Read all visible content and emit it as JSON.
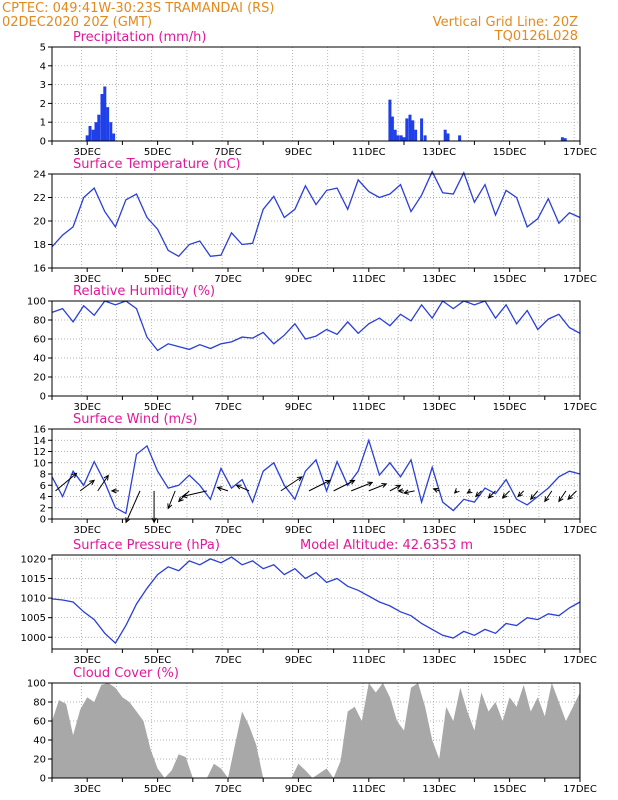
{
  "header": {
    "left_line1": "CPTEC:   049:41W-30:23S   TRAMANDAI (RS)",
    "left_line2": "02DEC2020 20Z (GMT)",
    "right_line1": "Vertical Grid Line: 20Z",
    "right_line2": "TQ0126L028"
  },
  "colors": {
    "header_text": "#e38a1e",
    "panel_title": "#e0189a",
    "series_line": "#2a3fd6",
    "precip_bar": "#1f3fe8",
    "cloud_fill": "#a8a8a8",
    "wind_arrow": "#000000",
    "grid": "#9a9a9a"
  },
  "chart_data": [
    {
      "id": "precip",
      "type": "bar",
      "title": "Precipitation (mm/h)",
      "xlim": [
        2.0,
        17.0
      ],
      "ylim": [
        0,
        5
      ],
      "yticks": [
        0,
        1,
        2,
        3,
        4,
        5
      ],
      "xticks": [
        3,
        5,
        7,
        9,
        11,
        13,
        15,
        17
      ],
      "xticklabels": [
        "3DEC",
        "5DEC",
        "7DEC",
        "9DEC",
        "11DEC",
        "13DEC",
        "15DEC",
        "17DEC"
      ],
      "x": [
        3.0,
        3.08,
        3.17,
        3.25,
        3.33,
        3.42,
        3.5,
        3.58,
        3.67,
        3.75,
        11.6,
        11.67,
        11.75,
        11.83,
        11.92,
        12.0,
        12.08,
        12.17,
        12.25,
        12.33,
        12.5,
        12.6,
        13.17,
        13.25,
        13.58,
        16.5,
        16.58
      ],
      "values": [
        0.3,
        0.8,
        0.6,
        1.0,
        1.4,
        2.5,
        2.9,
        1.8,
        1.0,
        0.4,
        2.2,
        1.3,
        0.6,
        0.3,
        0.3,
        0.2,
        1.2,
        1.4,
        1.1,
        0.6,
        1.2,
        0.3,
        0.6,
        0.4,
        0.3,
        0.2,
        0.15
      ]
    },
    {
      "id": "temp",
      "type": "line",
      "title": "Surface Temperature (nC)",
      "xlim": [
        2.0,
        17.0
      ],
      "ylim": [
        16,
        24
      ],
      "yticks": [
        16,
        18,
        20,
        22,
        24
      ],
      "xticks": [
        3,
        5,
        7,
        9,
        11,
        13,
        15,
        17
      ],
      "xticklabels": [
        "3DEC",
        "5DEC",
        "7DEC",
        "9DEC",
        "11DEC",
        "13DEC",
        "15DEC",
        "17DEC"
      ],
      "x": [
        2.0,
        2.3,
        2.6,
        2.9,
        3.2,
        3.5,
        3.8,
        4.1,
        4.4,
        4.7,
        5.0,
        5.3,
        5.6,
        5.9,
        6.2,
        6.5,
        6.8,
        7.1,
        7.4,
        7.7,
        8.0,
        8.3,
        8.6,
        8.9,
        9.2,
        9.5,
        9.8,
        10.1,
        10.4,
        10.7,
        11.0,
        11.3,
        11.6,
        11.9,
        12.2,
        12.5,
        12.8,
        13.1,
        13.4,
        13.7,
        14.0,
        14.3,
        14.6,
        14.9,
        15.2,
        15.5,
        15.8,
        16.1,
        16.4,
        16.7,
        17.0
      ],
      "y": [
        17.8,
        18.8,
        19.5,
        22.0,
        22.8,
        20.8,
        19.5,
        21.8,
        22.3,
        20.3,
        19.3,
        17.5,
        17.0,
        18.0,
        18.3,
        17.0,
        17.1,
        19.0,
        18.0,
        18.1,
        21.0,
        22.1,
        20.3,
        21.0,
        23.0,
        21.4,
        22.6,
        22.8,
        21.0,
        23.5,
        22.5,
        22.0,
        22.3,
        23.1,
        20.8,
        22.2,
        24.2,
        22.4,
        22.3,
        24.1,
        21.6,
        23.1,
        20.5,
        22.6,
        22.0,
        19.5,
        20.2,
        21.9,
        19.8,
        20.7,
        20.3
      ]
    },
    {
      "id": "rh",
      "type": "line",
      "title": "Relative Humidity (%)",
      "xlim": [
        2.0,
        17.0
      ],
      "ylim": [
        0,
        100
      ],
      "yticks": [
        0,
        20,
        40,
        60,
        80,
        100
      ],
      "xticks": [
        3,
        5,
        7,
        9,
        11,
        13,
        15,
        17
      ],
      "xticklabels": [
        "3DEC",
        "5DEC",
        "7DEC",
        "9DEC",
        "11DEC",
        "13DEC",
        "15DEC",
        "17DEC"
      ],
      "x": [
        2.0,
        2.3,
        2.6,
        2.9,
        3.2,
        3.5,
        3.8,
        4.1,
        4.4,
        4.7,
        5.0,
        5.3,
        5.6,
        5.9,
        6.2,
        6.5,
        6.8,
        7.1,
        7.4,
        7.7,
        8.0,
        8.3,
        8.6,
        8.9,
        9.2,
        9.5,
        9.8,
        10.1,
        10.4,
        10.7,
        11.0,
        11.3,
        11.6,
        11.9,
        12.2,
        12.5,
        12.8,
        13.1,
        13.4,
        13.7,
        14.0,
        14.3,
        14.6,
        14.9,
        15.2,
        15.5,
        15.8,
        16.1,
        16.4,
        16.7,
        17.0
      ],
      "y": [
        88,
        92,
        78,
        95,
        85,
        100,
        96,
        100,
        92,
        62,
        48,
        55,
        52,
        49,
        54,
        50,
        55,
        57,
        62,
        61,
        67,
        55,
        64,
        76,
        60,
        63,
        70,
        65,
        78,
        66,
        76,
        82,
        74,
        86,
        79,
        96,
        82,
        100,
        92,
        100,
        96,
        100,
        82,
        96,
        76,
        90,
        70,
        81,
        86,
        72,
        66
      ]
    },
    {
      "id": "wind",
      "type": "line",
      "title": "Surface Wind (m/s)",
      "xlim": [
        2.0,
        17.0
      ],
      "ylim": [
        0,
        16
      ],
      "yticks": [
        0,
        2,
        4,
        6,
        8,
        10,
        12,
        14,
        16
      ],
      "xticks": [
        3,
        5,
        7,
        9,
        11,
        13,
        15,
        17
      ],
      "xticklabels": [
        "3DEC",
        "5DEC",
        "7DEC",
        "9DEC",
        "11DEC",
        "13DEC",
        "15DEC",
        "17DEC"
      ],
      "x": [
        2.0,
        2.3,
        2.6,
        2.9,
        3.2,
        3.5,
        3.8,
        4.1,
        4.4,
        4.7,
        5.0,
        5.3,
        5.6,
        5.9,
        6.2,
        6.5,
        6.8,
        7.1,
        7.4,
        7.7,
        8.0,
        8.3,
        8.6,
        8.9,
        9.2,
        9.5,
        9.8,
        10.1,
        10.4,
        10.7,
        11.0,
        11.3,
        11.6,
        11.9,
        12.2,
        12.5,
        12.8,
        13.1,
        13.4,
        13.7,
        14.0,
        14.3,
        14.6,
        14.9,
        15.2,
        15.5,
        15.8,
        16.1,
        16.4,
        16.7,
        17.0
      ],
      "y": [
        7.5,
        4.0,
        8.5,
        6.0,
        10.2,
        6.5,
        2.0,
        1.0,
        11.5,
        13.0,
        8.5,
        5.5,
        6.0,
        7.8,
        6.0,
        3.5,
        9.0,
        5.5,
        7.0,
        3.0,
        8.5,
        10.0,
        6.0,
        3.5,
        8.5,
        10.5,
        5.0,
        10.2,
        6.0,
        8.5,
        14.0,
        7.8,
        10.0,
        7.5,
        10.5,
        3.0,
        9.2,
        3.0,
        1.5,
        3.5,
        3.0,
        5.5,
        4.5,
        7.0,
        3.5,
        2.5,
        4.0,
        5.5,
        7.5,
        8.5,
        8.0
      ],
      "arrows": [
        {
          "x": 2.1,
          "u": 3.0,
          "v": 2.5
        },
        {
          "x": 2.8,
          "u": 2.0,
          "v": 1.5
        },
        {
          "x": 3.3,
          "u": 1.5,
          "v": 2.2
        },
        {
          "x": 3.9,
          "u": -1.0,
          "v": 0.0
        },
        {
          "x": 4.5,
          "u": -2.0,
          "v": -4.5
        },
        {
          "x": 4.9,
          "u": 0.0,
          "v": -4.5
        },
        {
          "x": 5.5,
          "u": -1.0,
          "v": -2.5
        },
        {
          "x": 5.9,
          "u": -1.5,
          "v": -1.5
        },
        {
          "x": 6.4,
          "u": -3.5,
          "v": -0.8
        },
        {
          "x": 7.0,
          "u": -1.5,
          "v": 0.5
        },
        {
          "x": 7.6,
          "u": -1.8,
          "v": 0.8
        },
        {
          "x": 8.5,
          "u": 3.0,
          "v": 2.0
        },
        {
          "x": 9.3,
          "u": 3.0,
          "v": 1.5
        },
        {
          "x": 10.0,
          "u": 3.0,
          "v": 1.5
        },
        {
          "x": 10.5,
          "u": 3.0,
          "v": 1.2
        },
        {
          "x": 11.0,
          "u": 2.5,
          "v": 1.0
        },
        {
          "x": 11.6,
          "u": 1.5,
          "v": 0.8
        },
        {
          "x": 12.0,
          "u": -0.8,
          "v": 0.0
        },
        {
          "x": 12.3,
          "u": -1.5,
          "v": -0.3
        },
        {
          "x": 13.0,
          "u": -0.8,
          "v": 0.3
        },
        {
          "x": 13.5,
          "u": -0.3,
          "v": -0.3
        },
        {
          "x": 13.9,
          "u": -0.5,
          "v": -0.3
        },
        {
          "x": 14.2,
          "u": -0.8,
          "v": -0.8
        },
        {
          "x": 14.6,
          "u": -1.0,
          "v": -1.0
        },
        {
          "x": 15.0,
          "u": -1.0,
          "v": -1.0
        },
        {
          "x": 15.4,
          "u": -0.8,
          "v": -0.8
        },
        {
          "x": 15.8,
          "u": -1.0,
          "v": -1.2
        },
        {
          "x": 16.2,
          "u": -1.0,
          "v": -1.5
        },
        {
          "x": 16.6,
          "u": -1.0,
          "v": -1.5
        },
        {
          "x": 16.9,
          "u": -1.2,
          "v": -1.2
        }
      ]
    },
    {
      "id": "pressure",
      "type": "line",
      "title": "Surface Pressure (hPa)",
      "subtitle": "Model Altitude: 42.6353 m",
      "xlim": [
        2.0,
        17.0
      ],
      "ylim": [
        997,
        1021
      ],
      "yticks": [
        1000,
        1005,
        1010,
        1015,
        1020
      ],
      "xticks": [
        3,
        5,
        7,
        9,
        11,
        13,
        15,
        17
      ],
      "xticklabels": [
        "3DEC",
        "5DEC",
        "7DEC",
        "9DEC",
        "11DEC",
        "13DEC",
        "15DEC",
        "17DEC"
      ],
      "x": [
        2.0,
        2.3,
        2.6,
        2.9,
        3.2,
        3.5,
        3.8,
        4.1,
        4.4,
        4.7,
        5.0,
        5.3,
        5.6,
        5.9,
        6.2,
        6.5,
        6.8,
        7.1,
        7.4,
        7.7,
        8.0,
        8.3,
        8.6,
        8.9,
        9.2,
        9.5,
        9.8,
        10.1,
        10.4,
        10.7,
        11.0,
        11.3,
        11.6,
        11.9,
        12.2,
        12.5,
        12.8,
        13.1,
        13.4,
        13.7,
        14.0,
        14.3,
        14.6,
        14.9,
        15.2,
        15.5,
        15.8,
        16.1,
        16.4,
        16.7,
        17.0
      ],
      "y": [
        1009.8,
        1009.5,
        1009.0,
        1006.5,
        1004.5,
        1001.0,
        998.5,
        1003.0,
        1008.5,
        1012.5,
        1016.0,
        1018.0,
        1017.0,
        1019.5,
        1018.5,
        1020.0,
        1019.0,
        1020.5,
        1018.5,
        1019.5,
        1017.5,
        1018.5,
        1016.0,
        1017.5,
        1015.0,
        1016.5,
        1014.0,
        1015.0,
        1013.0,
        1012.0,
        1010.5,
        1009.0,
        1008.0,
        1006.5,
        1005.5,
        1003.5,
        1002.0,
        1000.5,
        999.8,
        1001.5,
        1000.5,
        1002.0,
        1001.0,
        1003.5,
        1003.0,
        1005.0,
        1004.5,
        1006.0,
        1005.5,
        1007.5,
        1009.0
      ]
    },
    {
      "id": "cloud",
      "type": "area",
      "title": "Cloud Cover (%)",
      "xlim": [
        2.0,
        17.0
      ],
      "ylim": [
        0,
        100
      ],
      "yticks": [
        0,
        20,
        40,
        60,
        80,
        100
      ],
      "xticks": [
        3,
        5,
        7,
        9,
        11,
        13,
        15,
        17
      ],
      "xticklabels": [
        "3DEC",
        "5DEC",
        "7DEC",
        "9DEC",
        "11DEC",
        "13DEC",
        "15DEC",
        "17DEC"
      ],
      "x": [
        2.0,
        2.2,
        2.4,
        2.6,
        2.8,
        3.0,
        3.2,
        3.4,
        3.6,
        3.8,
        4.0,
        4.2,
        4.4,
        4.6,
        4.8,
        5.0,
        5.2,
        5.4,
        5.6,
        5.8,
        6.0,
        6.2,
        6.4,
        6.6,
        6.8,
        7.0,
        7.2,
        7.4,
        7.6,
        7.8,
        8.0,
        8.2,
        8.4,
        8.6,
        8.8,
        9.0,
        9.2,
        9.4,
        9.6,
        9.8,
        10.0,
        10.2,
        10.4,
        10.6,
        10.8,
        11.0,
        11.2,
        11.4,
        11.6,
        11.8,
        12.0,
        12.2,
        12.4,
        12.6,
        12.8,
        13.0,
        13.2,
        13.4,
        13.6,
        13.8,
        14.0,
        14.2,
        14.4,
        14.6,
        14.8,
        15.0,
        15.2,
        15.4,
        15.6,
        15.8,
        16.0,
        16.2,
        16.4,
        16.6,
        16.8,
        17.0
      ],
      "y": [
        60,
        82,
        78,
        45,
        72,
        85,
        80,
        98,
        100,
        95,
        85,
        80,
        70,
        60,
        30,
        10,
        0,
        8,
        25,
        22,
        0,
        0,
        0,
        15,
        10,
        0,
        35,
        70,
        55,
        35,
        0,
        0,
        0,
        0,
        0,
        15,
        8,
        0,
        5,
        10,
        0,
        18,
        70,
        75,
        60,
        100,
        90,
        100,
        85,
        60,
        50,
        95,
        100,
        75,
        40,
        20,
        75,
        60,
        95,
        70,
        50,
        90,
        70,
        80,
        60,
        85,
        75,
        98,
        70,
        85,
        65,
        100,
        80,
        60,
        75,
        90
      ]
    }
  ]
}
